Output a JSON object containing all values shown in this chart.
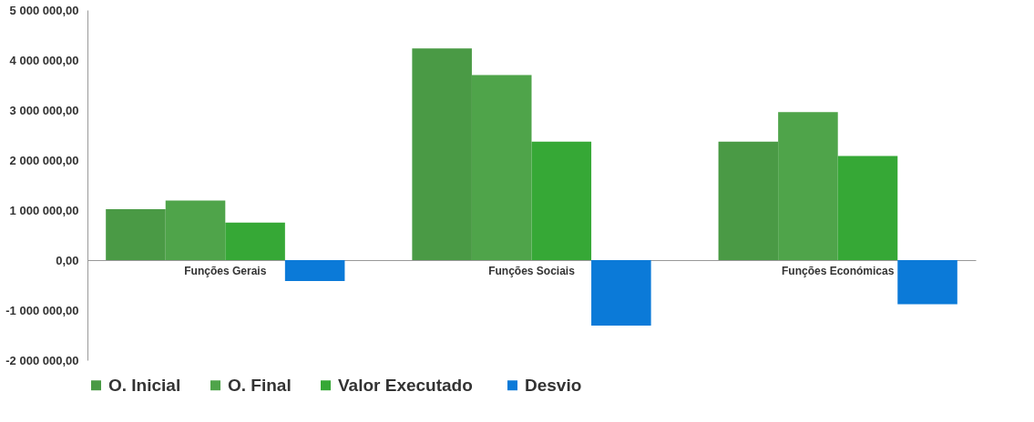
{
  "chart_data": {
    "type": "bar",
    "categories": [
      "Funções Gerais",
      "Funções Sociais",
      "Funções Económicas"
    ],
    "series": [
      {
        "name": "O. Inicial",
        "color": "#4a9a45",
        "values": [
          1020000,
          4230000,
          2370000
        ]
      },
      {
        "name": "O. Final",
        "color": "#4fa44a",
        "values": [
          1190000,
          3700000,
          2960000
        ]
      },
      {
        "name": "Valor  Executado",
        "color": "#36a836",
        "values": [
          750000,
          2370000,
          2080000
        ]
      },
      {
        "name": "Desvio",
        "color": "#0b7ad8",
        "values": [
          -420000,
          -1310000,
          -880000
        ]
      }
    ],
    "ylim": [
      -2000000,
      5000000
    ],
    "yticks": [
      {
        "value": -2000000,
        "label": "-2 000 000,00"
      },
      {
        "value": -1000000,
        "label": "-1 000 000,00"
      },
      {
        "value": 0,
        "label": "0,00"
      },
      {
        "value": 1000000,
        "label": "1 000 000,00"
      },
      {
        "value": 2000000,
        "label": "2 000 000,00"
      },
      {
        "value": 3000000,
        "label": "3 000 000,00"
      },
      {
        "value": 4000000,
        "label": "4 000 000,00"
      },
      {
        "value": 5000000,
        "label": "5 000 000,00"
      }
    ],
    "grid": false,
    "legend": "bottom"
  }
}
